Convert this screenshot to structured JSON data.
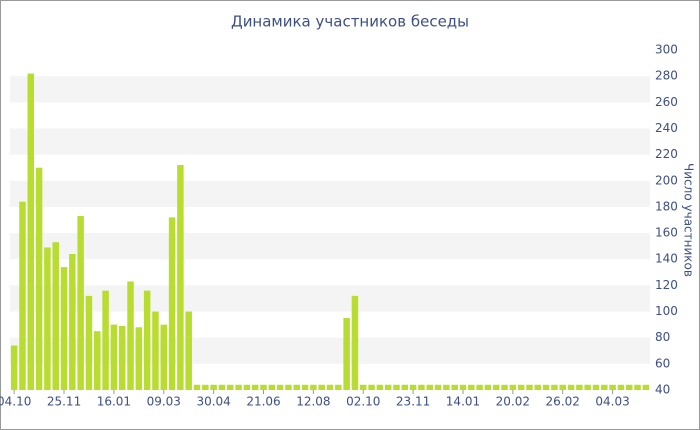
{
  "chart_data": {
    "type": "bar",
    "title": "Динамика участников беседы",
    "y_label": "Число участников",
    "categories": [
      "04.10",
      null,
      null,
      null,
      null,
      null,
      "25.11",
      null,
      null,
      null,
      null,
      null,
      "16.01",
      null,
      null,
      null,
      null,
      null,
      "09.03",
      null,
      null,
      null,
      null,
      null,
      "30.04",
      null,
      null,
      null,
      null,
      null,
      "21.06",
      null,
      null,
      null,
      null,
      null,
      "12.08",
      null,
      null,
      null,
      null,
      null,
      "02.10",
      null,
      null,
      null,
      null,
      null,
      "23.11",
      null,
      null,
      null,
      null,
      null,
      "14.01",
      null,
      null,
      null,
      null,
      null,
      "20.02",
      null,
      null,
      null,
      null,
      null,
      "26.02",
      null,
      null,
      null,
      null,
      null,
      "04.03",
      null,
      null,
      null,
      null
    ],
    "values": [
      74,
      184,
      282,
      210,
      149,
      153,
      134,
      144,
      173,
      112,
      85,
      116,
      90,
      89,
      123,
      88,
      116,
      100,
      90,
      172,
      212,
      100,
      44,
      44,
      44,
      44,
      44,
      44,
      44,
      44,
      44,
      44,
      44,
      44,
      44,
      44,
      44,
      44,
      44,
      44,
      95,
      112,
      44,
      44,
      44,
      44,
      44,
      44,
      44,
      44,
      44,
      44,
      44,
      44,
      44,
      44,
      44,
      44,
      44,
      44,
      44,
      44,
      44,
      44,
      44,
      44,
      44,
      44,
      44,
      44,
      44,
      44,
      44,
      44,
      44,
      44,
      44
    ],
    "color": "#b8dc30",
    "ylim": [
      40,
      300
    ],
    "yticks": [
      40,
      60,
      80,
      100,
      120,
      140,
      160,
      180,
      200,
      220,
      240,
      260,
      280,
      300
    ],
    "grid": true,
    "y_axis_side": "right"
  }
}
